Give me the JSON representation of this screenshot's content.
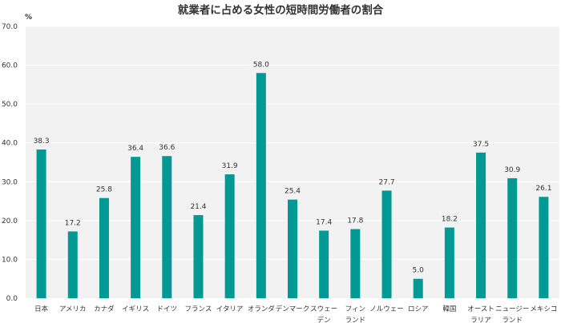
{
  "chart_data": {
    "type": "bar",
    "title": "就業者に占める女性の短時間労働者の割合",
    "ylabel": "%",
    "ylim": [
      0,
      70
    ],
    "yticks": [
      "0.0",
      "10.0",
      "20.0",
      "30.0",
      "40.0",
      "50.0",
      "60.0",
      "70.0"
    ],
    "grid": true,
    "categories": [
      [
        "日本"
      ],
      [
        "アメリカ"
      ],
      [
        "カナダ"
      ],
      [
        "イギリス"
      ],
      [
        "ドイツ"
      ],
      [
        "フランス"
      ],
      [
        "イタリア"
      ],
      [
        "オランダ"
      ],
      [
        "デンマーク"
      ],
      [
        "スウェー",
        "デン"
      ],
      [
        "フィン",
        "ランド"
      ],
      [
        "ノルウェー"
      ],
      [
        "ロシア"
      ],
      [
        "韓国"
      ],
      [
        "オースト",
        "ラリア"
      ],
      [
        "ニュージー",
        "ランド"
      ],
      [
        "メキシコ"
      ]
    ],
    "values": [
      38.3,
      17.2,
      25.8,
      36.4,
      36.6,
      21.4,
      31.9,
      58.0,
      25.4,
      17.4,
      17.8,
      27.7,
      5.0,
      18.2,
      37.5,
      30.9,
      26.1
    ],
    "data_labels": [
      "38.3",
      "17.2",
      "25.8",
      "36.4",
      "36.6",
      "21.4",
      "31.9",
      "58.0",
      "25.4",
      "17.4",
      "17.8",
      "27.7",
      "5.0",
      "18.2",
      "37.5",
      "30.9",
      "26.1"
    ],
    "bar_color": "#009994",
    "plot_background": "#f2f2f2",
    "grid_color": "#ffffff"
  }
}
